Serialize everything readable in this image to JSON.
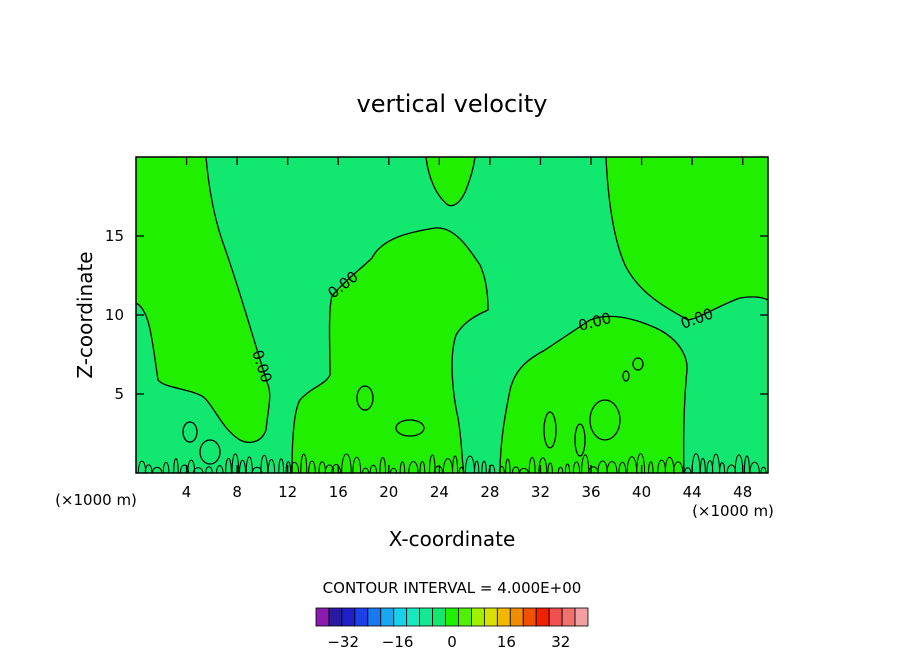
{
  "chart_data": {
    "type": "contour",
    "title": "vertical velocity",
    "xlabel": "X-coordinate",
    "ylabel": "Z-coordinate",
    "x_unit": "(×1000 m)",
    "xlim": [
      0,
      50
    ],
    "ylim": [
      0,
      20
    ],
    "x_ticks": [
      4,
      8,
      12,
      16,
      20,
      24,
      28,
      32,
      36,
      40,
      44,
      48
    ],
    "y_ticks": [
      5,
      10,
      15
    ],
    "contour_label": "0.00",
    "contour_interval_text": "CONTOUR INTERVAL = 4.000E+00",
    "contour_interval": 4,
    "colorbar": {
      "min": -40,
      "max": 40,
      "step": 4,
      "tick_labels": [
        -32,
        -16,
        0,
        16,
        32
      ],
      "colors": [
        "#8a1ab0",
        "#2a1aa0",
        "#2020c8",
        "#1e40e8",
        "#1a78f0",
        "#18a8f0",
        "#18d0e8",
        "#16e8c0",
        "#14e890",
        "#12e870",
        "#20f000",
        "#50f000",
        "#a0f000",
        "#d8e000",
        "#f0b800",
        "#f08c00",
        "#f05000",
        "#f02000",
        "#f05050",
        "#f07070",
        "#f0a0a0"
      ]
    },
    "regions": {
      "negative_color": "#12e870",
      "positive_color": "#20f000"
    }
  }
}
